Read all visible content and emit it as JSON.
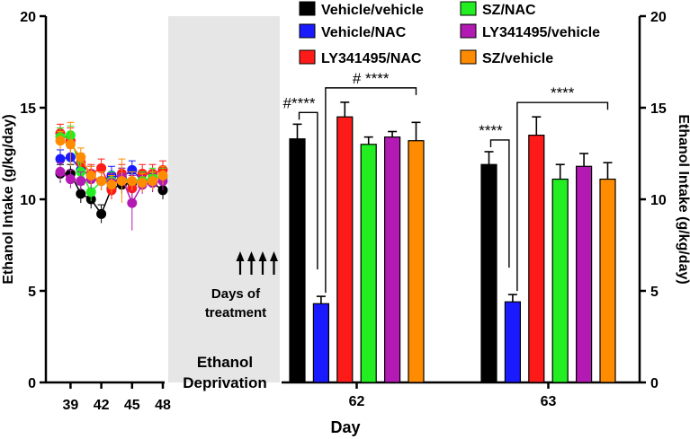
{
  "chart_data": {
    "type": "bar",
    "xlabel": "Day",
    "ylabel_left": "Ethanol Intake (g/kg/day)",
    "ylabel_right": "Ethanol Intake (g/kg/day)",
    "ylim": [
      0,
      20
    ],
    "yticks": [
      "0",
      "5",
      "10",
      "15",
      "20"
    ],
    "colors": {
      "Vehicle/vehicle": "#000000",
      "Vehicle/NAC": "#1a1aff",
      "LY341495/NAC": "#ff1a1a",
      "SZ/NAC": "#22ee22",
      "LY341495/vehicle": "#b31ab3",
      "SZ/vehicle": "#ff8c00"
    },
    "legend": [
      {
        "name": "Vehicle/vehicle",
        "color": "#000000"
      },
      {
        "name": "Vehicle/NAC",
        "color": "#1a1aff"
      },
      {
        "name": "LY341495/NAC",
        "color": "#ff1a1a"
      },
      {
        "name": "SZ/NAC",
        "color": "#22ee22"
      },
      {
        "name": "LY341495/vehicle",
        "color": "#b31ab3"
      },
      {
        "name": "SZ/vehicle",
        "color": "#ff8c00"
      }
    ],
    "bar_order": [
      "Vehicle/vehicle",
      "Vehicle/NAC",
      "LY341495/NAC",
      "SZ/NAC",
      "LY341495/vehicle",
      "SZ/vehicle"
    ],
    "baseline": {
      "type": "line",
      "days": [
        38,
        39,
        40,
        41,
        42,
        43,
        44,
        45,
        46,
        47,
        48
      ],
      "xticks": [
        "39",
        "42",
        "45",
        "48"
      ],
      "series": [
        {
          "name": "Vehicle/vehicle",
          "values": [
            11.4,
            11.4,
            10.3,
            10.0,
            9.2,
            10.6,
            10.8,
            10.9,
            11.0,
            10.9,
            10.5
          ],
          "err": [
            0.5,
            0.5,
            0.5,
            0.5,
            0.5,
            0.5,
            0.5,
            0.5,
            0.5,
            0.5,
            0.5
          ]
        },
        {
          "name": "Vehicle/NAC",
          "values": [
            12.2,
            12.3,
            11.6,
            11.3,
            11.0,
            11.3,
            11.2,
            11.6,
            11.0,
            11.0,
            11.3
          ],
          "err": [
            0.5,
            0.5,
            0.5,
            0.5,
            0.5,
            0.5,
            0.5,
            0.5,
            0.5,
            0.5,
            0.5
          ]
        },
        {
          "name": "LY341495/NAC",
          "values": [
            13.6,
            13.2,
            12.0,
            11.4,
            11.7,
            10.5,
            11.4,
            10.6,
            11.4,
            11.4,
            11.6
          ],
          "err": [
            0.5,
            0.7,
            0.5,
            0.5,
            0.5,
            0.5,
            0.5,
            0.5,
            0.5,
            0.5,
            0.5
          ]
        },
        {
          "name": "SZ/NAC",
          "values": [
            13.4,
            13.5,
            11.5,
            10.4,
            11.0,
            11.0,
            11.2,
            11.0,
            11.0,
            11.2,
            11.2
          ],
          "err": [
            0.5,
            0.5,
            0.5,
            0.5,
            0.5,
            0.5,
            0.5,
            0.5,
            0.5,
            0.5,
            0.5
          ]
        },
        {
          "name": "LY341495/vehicle",
          "values": [
            11.5,
            11.1,
            11.0,
            11.1,
            11.0,
            10.9,
            11.2,
            9.8,
            10.8,
            10.9,
            11.0
          ],
          "err": [
            0.5,
            0.5,
            0.5,
            0.5,
            0.5,
            0.5,
            0.5,
            1.5,
            0.5,
            0.5,
            0.5
          ]
        },
        {
          "name": "SZ/vehicle",
          "values": [
            13.2,
            13.0,
            12.3,
            11.3,
            11.0,
            10.8,
            11.0,
            11.0,
            10.9,
            11.0,
            11.3
          ],
          "err": [
            0.5,
            1.2,
            0.5,
            0.5,
            0.5,
            0.5,
            1.2,
            0.5,
            0.5,
            0.5,
            0.5
          ]
        }
      ]
    },
    "deprivation_label": [
      "Ethanol",
      "Deprivation"
    ],
    "treatment_label": [
      "Days of",
      "treatment"
    ],
    "treatment_arrows": 4,
    "groups": [
      {
        "day": "62",
        "values": [
          13.3,
          4.3,
          14.5,
          13.0,
          13.4,
          13.2
        ],
        "errors": [
          0.8,
          0.4,
          0.8,
          0.4,
          0.3,
          1.0
        ],
        "annotations": {
          "left": "#****",
          "right": "# ****"
        }
      },
      {
        "day": "63",
        "values": [
          11.9,
          4.4,
          13.5,
          11.1,
          11.8,
          11.1
        ],
        "errors": [
          0.7,
          0.4,
          1.0,
          0.8,
          0.7,
          0.9
        ],
        "annotations": {
          "left": "****",
          "right": "****"
        }
      }
    ]
  }
}
